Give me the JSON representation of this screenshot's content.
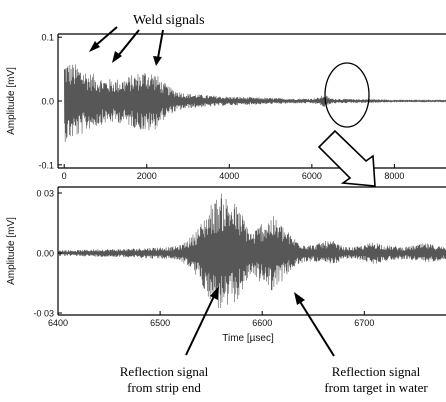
{
  "chart_data": [
    {
      "type": "line",
      "panel": "top",
      "ylabel": "Amplitude [mV]",
      "y_ticks": [
        "0.1",
        "0.0",
        "-0.1"
      ],
      "y_tick_values": [
        0.1,
        0.0,
        -0.1
      ],
      "x_ticks": [
        "0",
        "2000",
        "4000",
        "6000",
        "8000"
      ],
      "x_tick_values": [
        0,
        2000,
        4000,
        6000,
        8000
      ],
      "xlim": [
        -150,
        9250
      ],
      "ylim": [
        -0.105,
        0.105
      ],
      "grid": false,
      "series": [
        {
          "x": [
            0,
            200,
            400,
            600,
            800,
            1000,
            1200,
            1400,
            1600,
            1800,
            2000,
            2200,
            2400,
            2600,
            2800,
            3000,
            3500,
            4000,
            4500,
            5000,
            5500,
            6000,
            6200,
            6300,
            6400,
            6500,
            7000,
            7500,
            8000,
            8500,
            9000
          ],
          "y_envelope": [
            0.065,
            0.06,
            0.055,
            0.045,
            0.04,
            0.035,
            0.035,
            0.035,
            0.04,
            0.045,
            0.05,
            0.045,
            0.03,
            0.02,
            0.015,
            0.012,
            0.009,
            0.007,
            0.006,
            0.005,
            0.004,
            0.004,
            0.006,
            0.012,
            0.006,
            0.004,
            0.003,
            0.003,
            0.002,
            0.002,
            0.002
          ]
        }
      ],
      "annotations": [
        {
          "text": "Weld signals",
          "x": 1400,
          "y": 0.1
        },
        {
          "target": "circle",
          "x": 6300,
          "y": 0.0
        }
      ]
    },
    {
      "type": "line",
      "panel": "bottom",
      "ylabel": "Amplitude [mV]",
      "xlabel": "Time [µsec]",
      "y_ticks": [
        "0 03",
        "0.00",
        "-0 03"
      ],
      "y_tick_values": [
        0.03,
        0.0,
        -0.03
      ],
      "x_ticks": [
        "6400",
        "6500",
        "6600",
        "6700"
      ],
      "x_tick_values": [
        6400,
        6500,
        6600,
        6700
      ],
      "xlim": [
        6400,
        6780
      ],
      "ylim": [
        -0.031,
        0.033
      ],
      "grid": false,
      "series": [
        {
          "x": [
            6400,
            6420,
            6440,
            6460,
            6480,
            6500,
            6510,
            6520,
            6530,
            6540,
            6550,
            6560,
            6570,
            6580,
            6590,
            6600,
            6610,
            6620,
            6630,
            6640,
            6650,
            6660,
            6670,
            6680,
            6690,
            6700,
            6710,
            6720,
            6740,
            6760,
            6780
          ],
          "y_envelope": [
            0.0015,
            0.0015,
            0.002,
            0.002,
            0.0025,
            0.003,
            0.003,
            0.004,
            0.008,
            0.015,
            0.025,
            0.03,
            0.028,
            0.02,
            0.01,
            0.016,
            0.019,
            0.014,
            0.008,
            0.005,
            0.004,
            0.006,
            0.006,
            0.003,
            0.003,
            0.004,
            0.006,
            0.004,
            0.003,
            0.005,
            0.003
          ]
        }
      ],
      "annotations": [
        {
          "text_lines": [
            "Reflection signal",
            "from strip end"
          ],
          "x": 6560
        },
        {
          "text_lines": [
            "Reflection signal",
            "from target in water"
          ],
          "x": 6600
        }
      ]
    }
  ]
}
